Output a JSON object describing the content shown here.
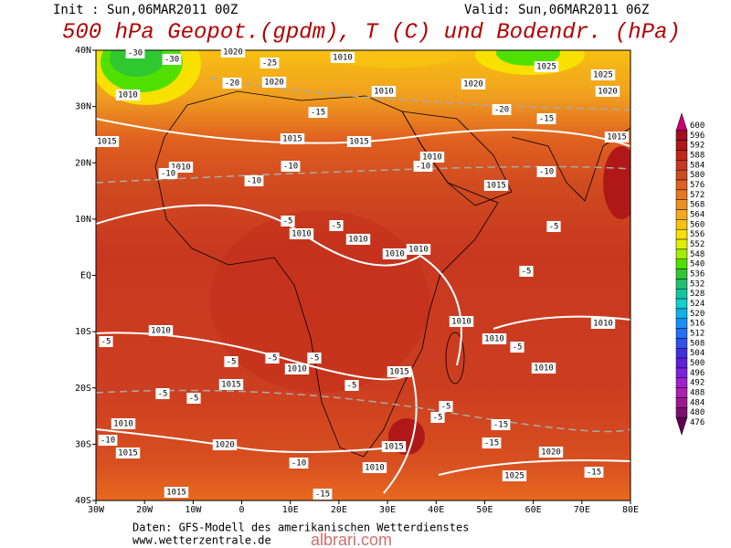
{
  "header": {
    "init": "Init : Sun,06MAR2011 00Z",
    "valid": "Valid: Sun,06MAR2011 06Z",
    "title": "500 hPa Geopot.(gpdm), T (C) und Bodendr. (hPa)"
  },
  "map": {
    "lat_labels": [
      "40N",
      "30N",
      "20N",
      "10N",
      "EQ",
      "10S",
      "20S",
      "30S",
      "40S"
    ],
    "lon_labels": [
      "30W",
      "20W",
      "10W",
      "0",
      "10E",
      "20E",
      "30E",
      "40E",
      "50E",
      "60E",
      "70E",
      "80E"
    ],
    "pressure_labels": [
      "1020",
      "1010",
      "1025",
      "1020",
      "1010",
      "1020",
      "1010",
      "1025",
      "1020",
      "1015",
      "1015",
      "1015",
      "1015",
      "1010",
      "1010",
      "1015",
      "1010",
      "1010",
      "1010",
      "1010",
      "1010",
      "1010",
      "1010",
      "1010",
      "1010",
      "1010",
      "1015",
      "1015",
      "1010",
      "1015",
      "1020",
      "1015",
      "1010",
      "1020",
      "1025",
      "1015"
    ],
    "temperature_labels": [
      "-30",
      "-30",
      "-25",
      "-20",
      "-15",
      "-20",
      "-15",
      "-10",
      "-10",
      "-10",
      "-10",
      "-10",
      "-5",
      "-5",
      "-5",
      "-5",
      "-5",
      "-5",
      "-5",
      "-5",
      "-5",
      "-5",
      "-5",
      "-5",
      "-5",
      "-5",
      "-15",
      "-10",
      "-15",
      "-10",
      "-15",
      "-15"
    ]
  },
  "colorbar": {
    "levels": [
      600,
      596,
      592,
      588,
      584,
      580,
      576,
      572,
      568,
      564,
      560,
      556,
      552,
      548,
      540,
      536,
      532,
      528,
      524,
      520,
      516,
      512,
      508,
      504,
      500,
      496,
      492,
      488,
      484,
      480,
      476
    ],
    "colors": [
      "#c8006e",
      "#a01020",
      "#b01818",
      "#c02818",
      "#c83820",
      "#d04a20",
      "#e06020",
      "#e87820",
      "#f09020",
      "#f8a818",
      "#f8c010",
      "#f8e000",
      "#e0f000",
      "#a0f000",
      "#50e000",
      "#30c830",
      "#20c070",
      "#10c8a0",
      "#10d0d0",
      "#10b0e8",
      "#1890f8",
      "#2070f8",
      "#3050f0",
      "#4030e0",
      "#6020e0",
      "#8020e0",
      "#a020d0",
      "#b020b0",
      "#a01890",
      "#801070",
      "#600050"
    ]
  },
  "footer": {
    "source": "Daten: GFS-Modell des amerikanischen Wetterdienstes",
    "url": "www.wetterzentrale.de",
    "watermark": "albrari.com"
  }
}
